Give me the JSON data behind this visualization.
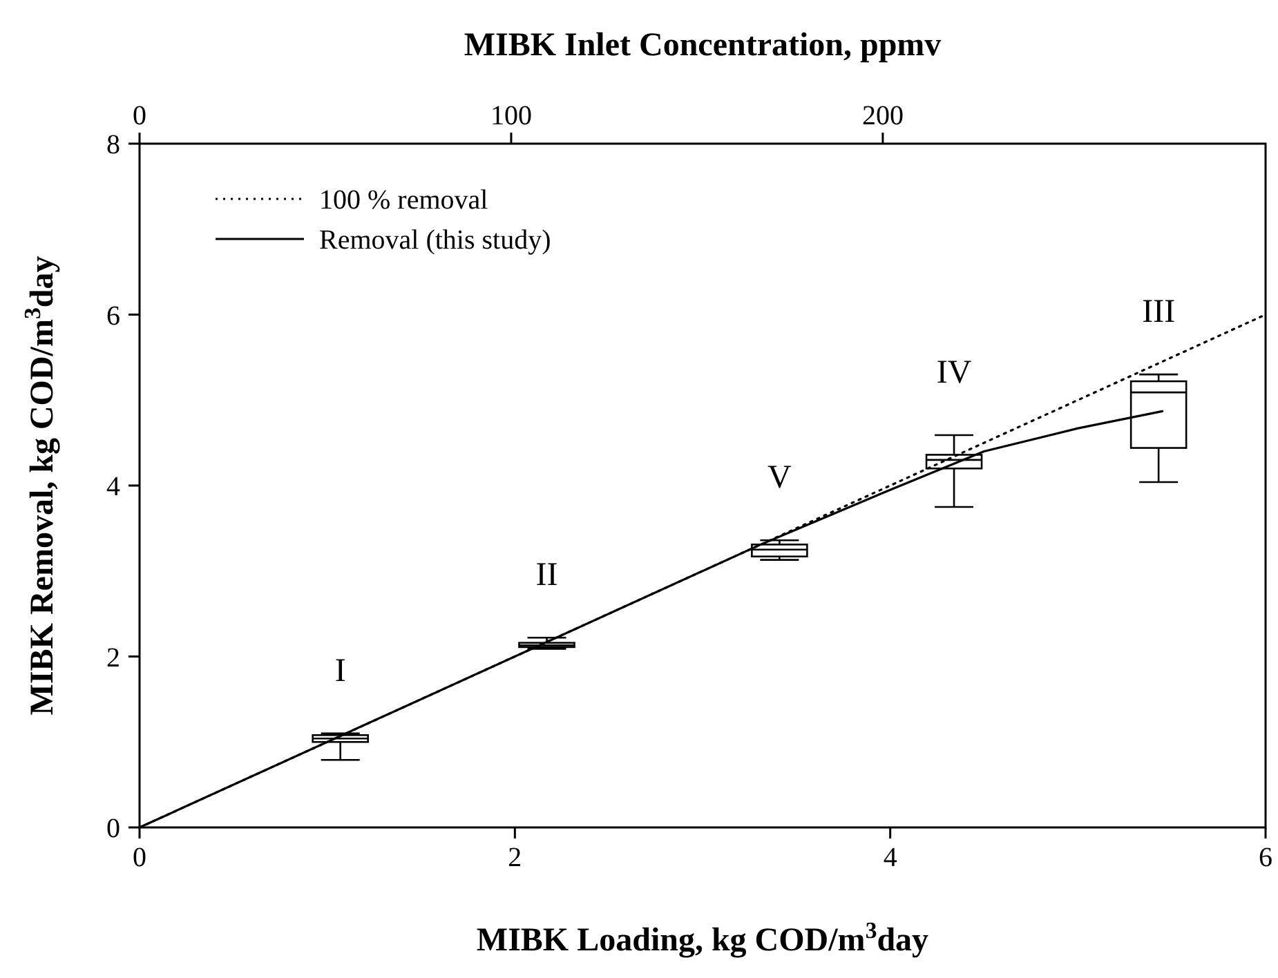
{
  "chart_data": {
    "type": "line",
    "xlabel": "MIBK Loading, kg COD/m$^{3}$day",
    "ylabel": "MIBK Removal, kg COD/m$^{3}$day",
    "x2label": "MIBK Inlet Concentration, ppmv",
    "xlim": [
      0,
      6
    ],
    "xticks": [
      0,
      2,
      4,
      6
    ],
    "ylim": [
      0,
      8
    ],
    "yticks": [
      0,
      2,
      4,
      6,
      8
    ],
    "x2lim": [
      0,
      303
    ],
    "x2ticks": [
      0,
      100,
      200
    ],
    "legend": "top left",
    "marker": "none",
    "grid": false,
    "series": [
      {
        "name": "100 % removal",
        "line_style": "dotted",
        "color": "#000000",
        "x": [
          0,
          6
        ],
        "values": [
          0,
          6
        ]
      },
      {
        "name": "Removal (this study)",
        "line_style": "solid",
        "color": "#000000",
        "x": [
          0,
          3.3,
          4.0,
          4.5,
          5.0,
          5.45
        ],
        "values": [
          0,
          3.3,
          3.95,
          4.4,
          4.67,
          4.87
        ]
      },
      {
        "type": "box",
        "color": "#000000",
        "x": [
          1.07,
          2.17,
          3.41,
          4.34,
          5.43
        ],
        "boxes": [
          {
            "low": 0.79,
            "q1": 1.0,
            "median": 1.04,
            "q3": 1.08,
            "high": 1.1
          },
          {
            "low": 2.09,
            "q1": 2.11,
            "median": 2.13,
            "q3": 2.16,
            "high": 2.22
          },
          {
            "low": 3.13,
            "q1": 3.17,
            "median": 3.25,
            "q3": 3.31,
            "high": 3.36
          },
          {
            "low": 3.75,
            "q1": 4.2,
            "median": 4.3,
            "q3": 4.36,
            "high": 4.59
          },
          {
            "low": 4.04,
            "q1": 4.44,
            "median": 5.09,
            "q3": 5.22,
            "high": 5.3
          }
        ]
      }
    ],
    "annotations": [
      "I",
      "II",
      "V",
      "IV",
      "III"
    ]
  }
}
